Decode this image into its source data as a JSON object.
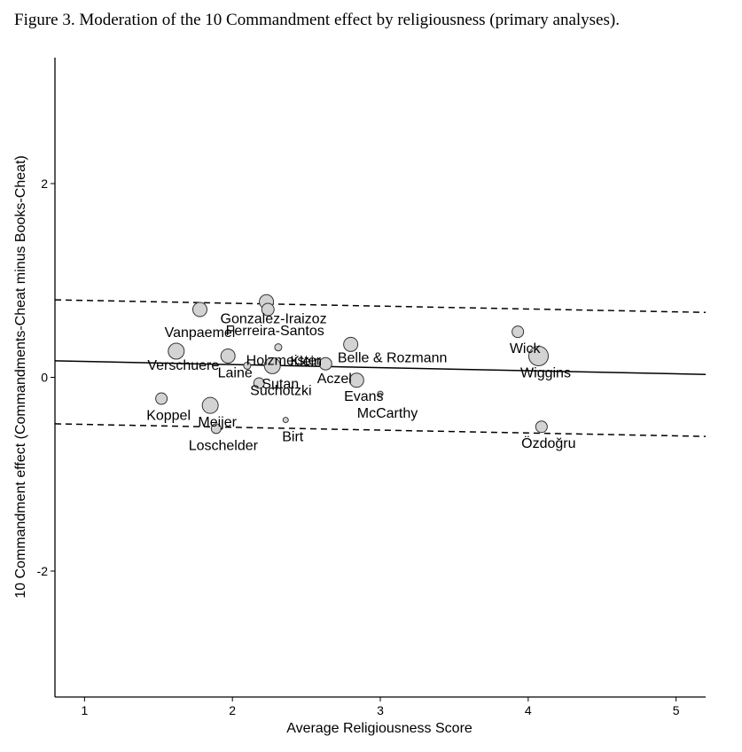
{
  "caption": "Figure 3. Moderation of the 10 Commandment effect by religiousness (primary analyses).",
  "chart_data": {
    "type": "scatter",
    "xlabel": "Average Religiousness Score",
    "ylabel": "10 Commandment effect (Commandments-Cheat minus Books-Cheat)",
    "xlim": [
      0.8,
      5.2
    ],
    "ylim": [
      -3.3,
      3.3
    ],
    "xticks": [
      "1",
      "2",
      "3",
      "4",
      "5"
    ],
    "yticks": [
      "-2",
      "0",
      "2"
    ],
    "point_color": "#d3d3d3",
    "points": [
      {
        "label": "Gonzalez-Iraizoz",
        "x": 2.23,
        "y": 0.78,
        "size": 8
      },
      {
        "label": "Ferreira-Santos",
        "x": 2.24,
        "y": 0.7,
        "size": 7
      },
      {
        "label": "Vanpaemel",
        "x": 1.78,
        "y": 0.7,
        "size": 8
      },
      {
        "label": "Holzmeister",
        "x": 2.31,
        "y": 0.31,
        "size": 4
      },
      {
        "label": "Klein",
        "x": 2.27,
        "y": 0.12,
        "size": 9
      },
      {
        "label": "Aczel",
        "x": 2.63,
        "y": 0.14,
        "size": 7
      },
      {
        "label": "Verschuere",
        "x": 1.62,
        "y": 0.27,
        "size": 9
      },
      {
        "label": "Laine",
        "x": 1.97,
        "y": 0.22,
        "size": 8
      },
      {
        "label": "Sutan",
        "x": 2.18,
        "y": -0.06,
        "size": 6
      },
      {
        "label": "Suchotzki",
        "x": 2.1,
        "y": 0.12,
        "size": 4
      },
      {
        "label": "Belle & Rozmann",
        "x": 2.8,
        "y": 0.34,
        "size": 8
      },
      {
        "label": "Evans",
        "x": 2.84,
        "y": -0.03,
        "size": 8
      },
      {
        "label": "McCarthy",
        "x": 3.0,
        "y": -0.17,
        "size": 3
      },
      {
        "label": "Koppel",
        "x": 1.52,
        "y": -0.22,
        "size": 6.5
      },
      {
        "label": "Meijer",
        "x": 1.85,
        "y": -0.29,
        "size": 9
      },
      {
        "label": "Loschelder",
        "x": 1.89,
        "y": -0.53,
        "size": 5.5
      },
      {
        "label": "Birt",
        "x": 2.36,
        "y": -0.44,
        "size": 3
      },
      {
        "label": "Wick",
        "x": 3.93,
        "y": 0.47,
        "size": 6.5
      },
      {
        "label": "Wiggins",
        "x": 4.07,
        "y": 0.22,
        "size": 11
      },
      {
        "label": "Özdoğru",
        "x": 4.09,
        "y": -0.51,
        "size": 6.5
      }
    ],
    "regression": {
      "x": [
        0.8,
        5.2
      ],
      "y": [
        0.17,
        0.03
      ]
    },
    "ci_upper": {
      "x": [
        0.8,
        5.2
      ],
      "y": [
        0.8,
        0.67
      ]
    },
    "ci_lower": {
      "x": [
        0.8,
        5.2
      ],
      "y": [
        -0.48,
        -0.61
      ]
    }
  }
}
